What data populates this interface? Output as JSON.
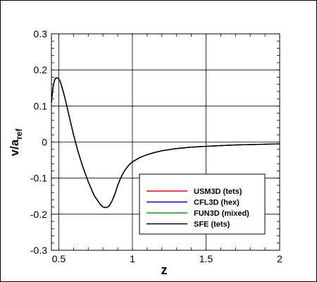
{
  "chart_data": {
    "type": "line",
    "xlabel": "z",
    "ylabel_main": "v/a",
    "ylabel_sub": "ref",
    "xlim": [
      0.45,
      2.0
    ],
    "ylim": [
      -0.3,
      0.3
    ],
    "grid": true,
    "legend_position": "bottom-right",
    "x_ticks": [
      0.5,
      1,
      1.5,
      2
    ],
    "x_tick_labels": [
      "0.5",
      "1",
      "1.5",
      "2"
    ],
    "y_ticks": [
      -0.3,
      -0.2,
      -0.1,
      0,
      0.1,
      0.2,
      0.3
    ],
    "y_tick_labels": [
      "-0.3",
      "-0.2",
      "-0.1",
      "0",
      "0.1",
      "0.2",
      "0.3"
    ],
    "x": [
      0.45,
      0.46,
      0.47,
      0.48,
      0.49,
      0.5,
      0.51,
      0.52,
      0.54,
      0.56,
      0.58,
      0.6,
      0.63,
      0.66,
      0.7,
      0.74,
      0.78,
      0.8,
      0.82,
      0.84,
      0.86,
      0.88,
      0.9,
      0.92,
      0.94,
      0.96,
      0.98,
      1.0,
      1.05,
      1.1,
      1.15,
      1.2,
      1.3,
      1.4,
      1.5,
      1.6,
      1.7,
      1.8,
      1.9,
      2.0
    ],
    "series": [
      {
        "name": "USM3D (tets)",
        "color": "#ff0000",
        "values": [
          0.11,
          0.15,
          0.17,
          0.178,
          0.178,
          0.175,
          0.168,
          0.155,
          0.125,
          0.09,
          0.055,
          0.02,
          -0.025,
          -0.065,
          -0.11,
          -0.148,
          -0.172,
          -0.18,
          -0.182,
          -0.178,
          -0.165,
          -0.145,
          -0.12,
          -0.1,
          -0.084,
          -0.072,
          -0.062,
          -0.055,
          -0.043,
          -0.035,
          -0.029,
          -0.024,
          -0.018,
          -0.014,
          -0.012,
          -0.01,
          -0.008,
          -0.007,
          -0.006,
          -0.005
        ]
      },
      {
        "name": "CFL3D (hex)",
        "color": "#0000ff",
        "values": [
          0.11,
          0.15,
          0.17,
          0.178,
          0.178,
          0.175,
          0.168,
          0.155,
          0.125,
          0.09,
          0.055,
          0.02,
          -0.025,
          -0.065,
          -0.11,
          -0.148,
          -0.172,
          -0.18,
          -0.182,
          -0.178,
          -0.165,
          -0.145,
          -0.12,
          -0.1,
          -0.084,
          -0.072,
          -0.062,
          -0.055,
          -0.043,
          -0.035,
          -0.029,
          -0.024,
          -0.018,
          -0.014,
          -0.012,
          -0.01,
          -0.008,
          -0.007,
          -0.006,
          -0.005
        ]
      },
      {
        "name": "FUN3D (mixed)",
        "color": "#00b000",
        "values": [
          0.11,
          0.15,
          0.17,
          0.178,
          0.178,
          0.175,
          0.168,
          0.155,
          0.125,
          0.09,
          0.055,
          0.02,
          -0.025,
          -0.065,
          -0.11,
          -0.148,
          -0.172,
          -0.18,
          -0.182,
          -0.178,
          -0.165,
          -0.145,
          -0.12,
          -0.1,
          -0.084,
          -0.072,
          -0.062,
          -0.055,
          -0.043,
          -0.035,
          -0.029,
          -0.024,
          -0.018,
          -0.014,
          -0.012,
          -0.01,
          -0.008,
          -0.007,
          -0.006,
          -0.005
        ]
      },
      {
        "name": "SFE (tets)",
        "color": "#000000",
        "values": [
          0.11,
          0.15,
          0.17,
          0.178,
          0.178,
          0.175,
          0.168,
          0.155,
          0.125,
          0.09,
          0.055,
          0.02,
          -0.025,
          -0.065,
          -0.11,
          -0.148,
          -0.172,
          -0.18,
          -0.182,
          -0.178,
          -0.165,
          -0.145,
          -0.12,
          -0.1,
          -0.084,
          -0.072,
          -0.062,
          -0.055,
          -0.043,
          -0.035,
          -0.029,
          -0.024,
          -0.018,
          -0.014,
          -0.012,
          -0.01,
          -0.008,
          -0.007,
          -0.006,
          -0.005
        ]
      }
    ]
  }
}
